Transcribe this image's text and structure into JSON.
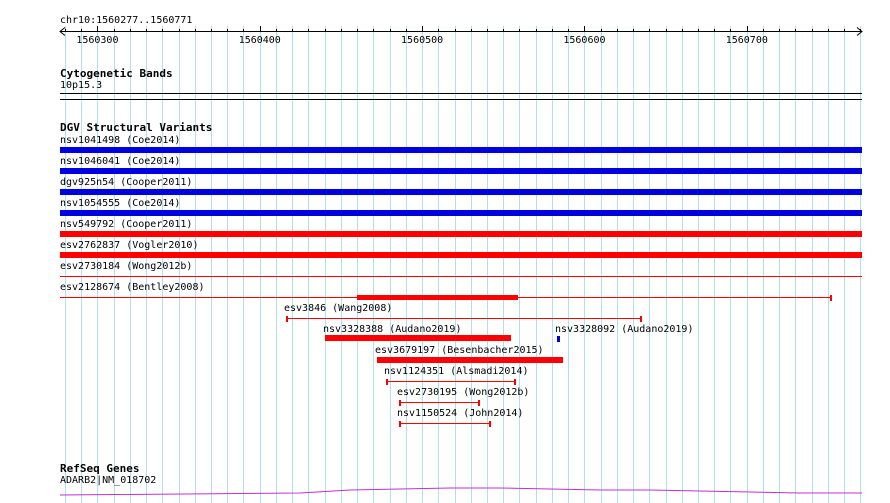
{
  "coord": {
    "label": "chr10:1560277..1560771",
    "start": 1560277,
    "end": 1560771
  },
  "ruler": {
    "ticks": [
      "1560300",
      "1560400",
      "1560500",
      "1560600",
      "1560700"
    ]
  },
  "tracks": {
    "cytoband": {
      "title": "Cytogenetic Bands",
      "band": "10p15.3"
    },
    "dgv": {
      "title": "DGV Structural Variants",
      "items": [
        {
          "label": "nsv1041498 (Coe2014)",
          "color": "#0000e0",
          "start": 1560277,
          "end": 1560771,
          "style": "thick"
        },
        {
          "label": "nsv1046041 (Coe2014)",
          "color": "#0000e0",
          "start": 1560277,
          "end": 1560771,
          "style": "thick"
        },
        {
          "label": "dgv925n54 (Cooper2011)",
          "color": "#0000e0",
          "start": 1560277,
          "end": 1560771,
          "style": "thick"
        },
        {
          "label": "nsv1054555 (Coe2014)",
          "color": "#0000e0",
          "start": 1560277,
          "end": 1560771,
          "style": "thick"
        },
        {
          "label": "nsv549792 (Cooper2011)",
          "color": "#ff0000",
          "start": 1560277,
          "end": 1560771,
          "style": "thick"
        },
        {
          "label": "esv2762837 (Vogler2010)",
          "color": "#ff0000",
          "start": 1560277,
          "end": 1560771,
          "style": "thick"
        },
        {
          "label": "esv2730184 (Wong2012b)",
          "color": "#ff0000",
          "start": 1560277,
          "end": 1560771,
          "style": "thin"
        },
        {
          "label": "esv2128674 (Bentley2008)",
          "color": "#ff0000",
          "start": 1560277,
          "end": 1560752,
          "style": "gapped",
          "block_start": 1560460,
          "block_end": 1560559
        },
        {
          "label": "esv3846 (Wang2008)",
          "color": "#ff0000",
          "start": 1560416,
          "end": 1560635,
          "style": "thin"
        },
        {
          "label": "nsv3328388 (Audano2019)",
          "color": "#ff0000",
          "start": 1560440,
          "end": 1560555,
          "style": "thick"
        },
        {
          "label": "nsv3328092 (Audano2019)",
          "color": "#0000e0",
          "start": 1560583,
          "end": 1560585,
          "style": "thick"
        },
        {
          "label": "esv3679197 (Besenbacher2015)",
          "color": "#ff0000",
          "start": 1560472,
          "end": 1560587,
          "style": "thick"
        },
        {
          "label": "nsv1124351 (Alsmadi2014)",
          "color": "#ff0000",
          "start": 1560478,
          "end": 1560557,
          "style": "thin"
        },
        {
          "label": "esv2730195 (Wong2012b)",
          "color": "#ff0000",
          "start": 1560486,
          "end": 1560535,
          "style": "thin"
        },
        {
          "label": "nsv1150524 (John2014)",
          "color": "#ff0000",
          "start": 1560486,
          "end": 1560542,
          "style": "thin"
        }
      ]
    },
    "refseq": {
      "title": "RefSeq Genes",
      "gene": "ADARB2|NM_018702",
      "color": "#c030d0"
    }
  }
}
